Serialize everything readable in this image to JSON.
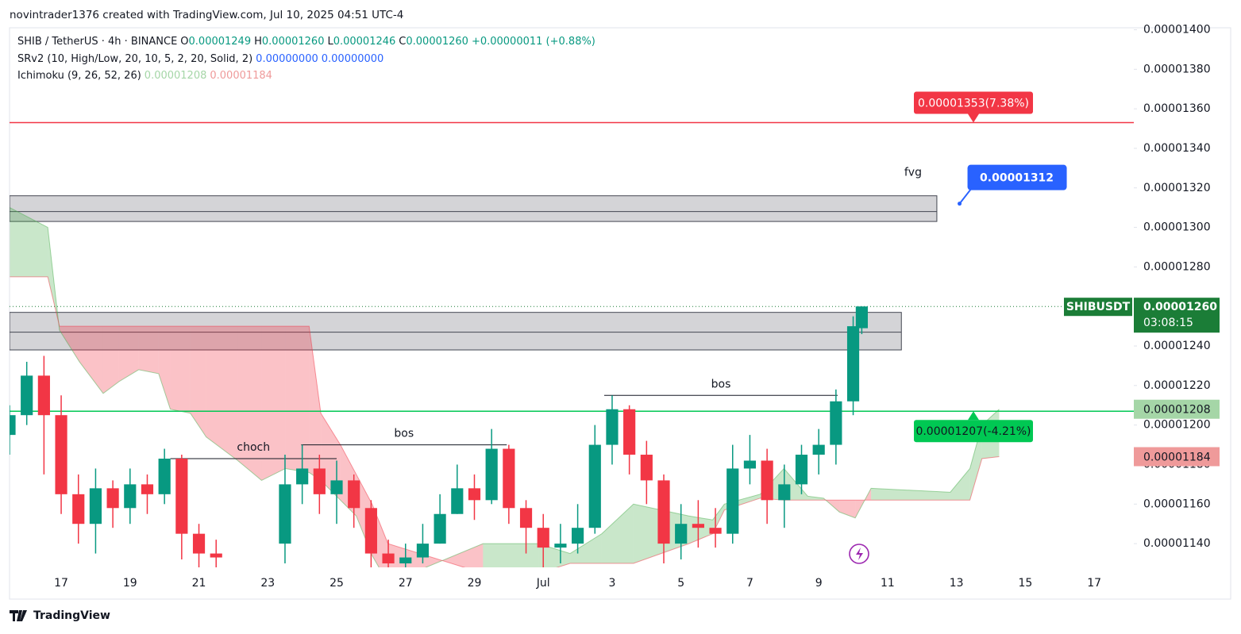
{
  "header": {
    "attribution": "novintrader1376 created with TradingView.com, Jul 10, 2025 04:51 UTC-4",
    "symbol": "SHIB / TetherUS · 4h · BINANCE",
    "ohlc": [
      {
        "key": "O",
        "value": "0.00001249"
      },
      {
        "key": "H",
        "value": "0.00001260"
      },
      {
        "key": "L",
        "value": "0.00001246"
      },
      {
        "key": "C",
        "value": "0.00001260"
      }
    ],
    "change": "+0.00000011 (+0.88%)",
    "indicators": [
      {
        "name": "SRv2 (10, High/Low, 20, 10, 5, 2, 20, Solid, 2)",
        "values": [
          "0.00000000",
          "0.00000000"
        ],
        "colors": [
          "#2962ff",
          "#2962ff"
        ]
      },
      {
        "name": "Ichimoku (9, 26, 52, 26)",
        "values": [
          "0.00001208",
          "0.00001184"
        ],
        "colors": [
          "#a5d6a7",
          "#ef9a9a"
        ]
      }
    ]
  },
  "chart_data": {
    "type": "candlestick",
    "x": [
      15.5,
      16,
      16.5,
      17,
      17.5,
      18,
      18.5,
      19,
      19.5,
      20,
      20.5,
      21,
      21.5,
      23.5,
      24,
      24.5,
      25,
      25.5,
      26,
      26.5,
      27,
      27.5,
      28,
      28.5,
      29,
      29.5,
      30,
      30.5,
      31,
      31.5,
      32,
      32.5,
      33,
      33.5,
      34,
      34.5,
      35,
      35.5,
      36,
      36.5,
      37,
      37.5,
      38,
      38.5,
      39,
      39.5,
      40,
      40.25
    ],
    "open": [
      1.195e-05,
      1.205e-05,
      1.225e-05,
      1.205e-05,
      1.165e-05,
      1.15e-05,
      1.168e-05,
      1.158e-05,
      1.17e-05,
      1.165e-05,
      1.183e-05,
      1.145e-05,
      1.135e-05,
      1.14e-05,
      1.17e-05,
      1.178e-05,
      1.165e-05,
      1.172e-05,
      1.158e-05,
      1.135e-05,
      1.13e-05,
      1.133e-05,
      1.14e-05,
      1.155e-05,
      1.168e-05,
      1.162e-05,
      1.188e-05,
      1.158e-05,
      1.148e-05,
      1.138e-05,
      1.14e-05,
      1.148e-05,
      1.19e-05,
      1.208e-05,
      1.185e-05,
      1.172e-05,
      1.14e-05,
      1.15e-05,
      1.148e-05,
      1.145e-05,
      1.178e-05,
      1.182e-05,
      1.162e-05,
      1.17e-05,
      1.185e-05,
      1.19e-05,
      1.212e-05,
      1.249e-05
    ],
    "high": [
      1.21e-05,
      1.232e-05,
      1.235e-05,
      1.215e-05,
      1.175e-05,
      1.178e-05,
      1.172e-05,
      1.178e-05,
      1.175e-05,
      1.188e-05,
      1.185e-05,
      1.15e-05,
      1.142e-05,
      1.185e-05,
      1.19e-05,
      1.185e-05,
      1.182e-05,
      1.175e-05,
      1.162e-05,
      1.142e-05,
      1.14e-05,
      1.15e-05,
      1.165e-05,
      1.18e-05,
      1.175e-05,
      1.198e-05,
      1.19e-05,
      1.162e-05,
      1.155e-05,
      1.15e-05,
      1.16e-05,
      1.2e-05,
      1.215e-05,
      1.21e-05,
      1.192e-05,
      1.175e-05,
      1.16e-05,
      1.162e-05,
      1.158e-05,
      1.19e-05,
      1.195e-05,
      1.188e-05,
      1.18e-05,
      1.19e-05,
      1.198e-05,
      1.218e-05,
      1.255e-05,
      1.26e-05
    ],
    "low": [
      1.185e-05,
      1.2e-05,
      1.175e-05,
      1.155e-05,
      1.14e-05,
      1.135e-05,
      1.148e-05,
      1.15e-05,
      1.155e-05,
      1.16e-05,
      1.132e-05,
      1.128e-05,
      1.128e-05,
      1.13e-05,
      1.16e-05,
      1.155e-05,
      1.15e-05,
      1.148e-05,
      1.128e-05,
      1.128e-05,
      1.128e-05,
      1.13e-05,
      1.14e-05,
      1.155e-05,
      1.152e-05,
      1.16e-05,
      1.15e-05,
      1.135e-05,
      1.128e-05,
      1.13e-05,
      1.135e-05,
      1.145e-05,
      1.18e-05,
      1.175e-05,
      1.16e-05,
      1.13e-05,
      1.132e-05,
      1.138e-05,
      1.138e-05,
      1.14e-05,
      1.17e-05,
      1.15e-05,
      1.148e-05,
      1.165e-05,
      1.175e-05,
      1.18e-05,
      1.205e-05,
      1.246e-05
    ],
    "close": [
      1.205e-05,
      1.225e-05,
      1.205e-05,
      1.165e-05,
      1.15e-05,
      1.168e-05,
      1.158e-05,
      1.17e-05,
      1.165e-05,
      1.183e-05,
      1.145e-05,
      1.135e-05,
      1.133e-05,
      1.17e-05,
      1.178e-05,
      1.165e-05,
      1.172e-05,
      1.158e-05,
      1.135e-05,
      1.13e-05,
      1.133e-05,
      1.14e-05,
      1.155e-05,
      1.168e-05,
      1.162e-05,
      1.188e-05,
      1.158e-05,
      1.148e-05,
      1.138e-05,
      1.14e-05,
      1.148e-05,
      1.19e-05,
      1.208e-05,
      1.185e-05,
      1.172e-05,
      1.14e-05,
      1.15e-05,
      1.148e-05,
      1.145e-05,
      1.178e-05,
      1.182e-05,
      1.162e-05,
      1.17e-05,
      1.185e-05,
      1.19e-05,
      1.212e-05,
      1.25e-05,
      1.26e-05
    ],
    "up_color": "#089981",
    "down_color": "#f23645",
    "xlim": [
      15.5,
      48.15
    ],
    "ylim": [
      1.128e-05,
      1.401e-05
    ],
    "xticks": [
      17,
      19,
      21,
      23,
      25,
      27,
      29,
      {
        "value": 31,
        "label": "Jul"
      },
      {
        "value": 33,
        "label": "3"
      },
      {
        "value": 35,
        "label": "5"
      },
      {
        "value": 37,
        "label": "7"
      },
      {
        "value": 39,
        "label": "9"
      },
      {
        "value": 41,
        "label": "11"
      },
      {
        "value": 43,
        "label": "13"
      },
      {
        "value": 45,
        "label": "15"
      },
      {
        "value": 47,
        "label": "17"
      }
    ],
    "yticks": [
      {
        "value": 1.14e-05,
        "label": "0.00001140"
      },
      {
        "value": 1.16e-05,
        "label": "0.00001160"
      },
      {
        "value": 1.18e-05,
        "label": "0.00001180"
      },
      {
        "value": 1.2e-05,
        "label": "0.00001200"
      },
      {
        "value": 1.22e-05,
        "label": "0.00001220"
      },
      {
        "value": 1.24e-05,
        "label": "0.00001240"
      },
      {
        "value": 1.26e-05,
        "label": "0.00001260"
      },
      {
        "value": 1.28e-05,
        "label": "0.00001280"
      },
      {
        "value": 1.3e-05,
        "label": "0.00001300"
      },
      {
        "value": 1.32e-05,
        "label": "0.00001320"
      },
      {
        "value": 1.34e-05,
        "label": "0.00001340"
      },
      {
        "value": 1.36e-05,
        "label": "0.00001360"
      },
      {
        "value": 1.38e-05,
        "label": "0.00001380"
      },
      {
        "value": 1.4e-05,
        "label": "0.00001400"
      }
    ],
    "grid": false,
    "ichimoku": {
      "x": [
        15.51,
        16.61,
        16.95,
        17.53,
        18.22,
        18.68,
        19.25,
        19.83,
        20.17,
        20.75,
        21.21,
        22.13,
        22.82,
        23.51,
        24.2,
        24.54,
        25.11,
        25.57,
        26.03,
        26.49,
        29.25,
        30.86,
        31.78,
        32.7,
        33.62,
        35.23,
        35.92,
        36.26,
        37.3,
        37.99,
        38.68,
        39.14,
        39.6,
        40.06,
        40.52,
        42.82,
        43.39,
        43.74,
        44.24
      ],
      "span_a": [
        1.31e-05,
        1.3e-05,
        1.248e-05,
        1.232e-05,
        1.216e-05,
        1.222e-05,
        1.228e-05,
        1.226e-05,
        1.208e-05,
        1.206e-05,
        1.194e-05,
        1.182e-05,
        1.172e-05,
        1.178e-05,
        1.176e-05,
        1.172e-05,
        1.162e-05,
        1.154e-05,
        1.134e-05,
        1.12e-05,
        1.14e-05,
        1.14e-05,
        1.135e-05,
        1.145e-05,
        1.16e-05,
        1.154e-05,
        1.152e-05,
        1.16e-05,
        1.165e-05,
        1.178e-05,
        1.164e-05,
        1.163e-05,
        1.156e-05,
        1.153e-05,
        1.168e-05,
        1.166e-05,
        1.178e-05,
        1.2e-05,
        1.208e-05
      ],
      "span_b": [
        1.275e-05,
        1.275e-05,
        1.25e-05,
        1.25e-05,
        1.25e-05,
        1.25e-05,
        1.25e-05,
        1.25e-05,
        1.25e-05,
        1.25e-05,
        1.25e-05,
        1.25e-05,
        1.25e-05,
        1.25e-05,
        1.25e-05,
        1.206e-05,
        1.19e-05,
        1.175e-05,
        1.16e-05,
        1.14e-05,
        1.125e-05,
        1.125e-05,
        1.13e-05,
        1.13e-05,
        1.13e-05,
        1.14e-05,
        1.145e-05,
        1.157e-05,
        1.163e-05,
        1.162e-05,
        1.162e-05,
        1.162e-05,
        1.162e-05,
        1.162e-05,
        1.162e-05,
        1.162e-05,
        1.162e-05,
        1.183e-05,
        1.184e-05
      ],
      "bull_color": "#4caf50",
      "bear_color": "#f23645"
    },
    "levels": [
      {
        "value": 1.353e-05,
        "label": "0.00001353(7.38%)",
        "color": "#f23645",
        "tag": "above"
      },
      {
        "value": 1.207e-05,
        "label": "0.00001207(-4.21%)",
        "color": "#00c853",
        "tag": "below"
      }
    ],
    "zones": [
      {
        "top": 1.316e-05,
        "mid": 1.308e-05,
        "bottom": 1.303e-05,
        "x_end": 42.43,
        "label": "fvg"
      },
      {
        "top": 1.257e-05,
        "mid": 1.247e-05,
        "bottom": 1.238e-05,
        "x_end": 41.4
      }
    ],
    "annotations": [
      {
        "text": "choch",
        "value": 1.183e-05,
        "x": [
          20.17,
          25.0
        ]
      },
      {
        "text": "bos",
        "value": 1.19e-05,
        "x": [
          23.97,
          29.94
        ]
      },
      {
        "text": "bos",
        "value": 1.215e-05,
        "x": [
          32.77,
          39.55
        ]
      }
    ],
    "target": {
      "value": 1.312e-05,
      "x": 43.09,
      "color": "#2962ff"
    },
    "last_price": {
      "symbol": "SHIBUSDT",
      "value": 1.26e-05,
      "label": "0.00001260",
      "countdown": "03:08:15",
      "color": "#1b7d37"
    },
    "ichimoku_tags": [
      {
        "value": 1.208e-05,
        "color": "#a5d6a7"
      },
      {
        "value": 1.184e-05,
        "color": "#ef9a9a"
      }
    ]
  },
  "footer": {
    "brand": "TradingView"
  }
}
